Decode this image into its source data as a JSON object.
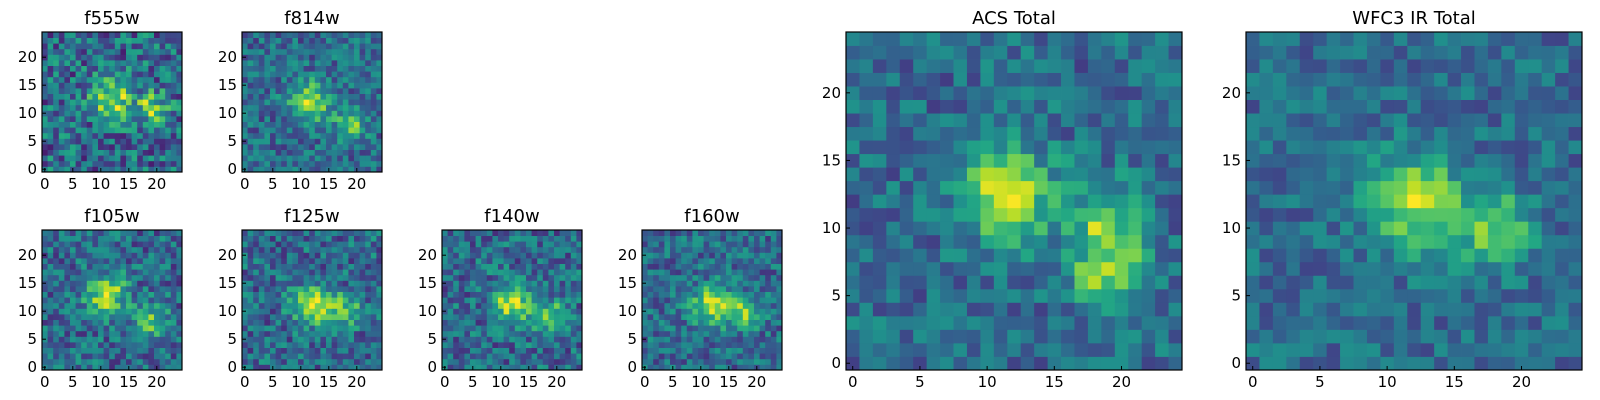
{
  "colormap": "viridis",
  "chart_data": [
    {
      "type": "heatmap",
      "title": "f555w",
      "grid": false,
      "colormap": "viridis",
      "xlim": [
        0,
        24
      ],
      "ylim": [
        0,
        24
      ],
      "xticks": [
        "0",
        "5",
        "10",
        "15",
        "20"
      ],
      "yticks": [
        "0",
        "5",
        "10",
        "15",
        "20"
      ],
      "source_peaks": [
        [
          12,
          12.5
        ],
        [
          19,
          11
        ]
      ],
      "noise_level": 0.55
    },
    {
      "type": "heatmap",
      "title": "f814w",
      "grid": false,
      "colormap": "viridis",
      "xlim": [
        0,
        24
      ],
      "ylim": [
        0,
        24
      ],
      "xticks": [
        "0",
        "5",
        "10",
        "15",
        "20"
      ],
      "yticks": [
        "0",
        "5",
        "10",
        "15",
        "20"
      ],
      "source_peaks": [
        [
          11.5,
          12
        ],
        [
          19,
          8
        ]
      ],
      "noise_level": 0.4
    },
    {
      "type": "heatmap",
      "title": "f105w",
      "grid": false,
      "colormap": "viridis",
      "xlim": [
        0,
        24
      ],
      "ylim": [
        0,
        24
      ],
      "xticks": [
        "0",
        "5",
        "10",
        "15",
        "20"
      ],
      "yticks": [
        "0",
        "5",
        "10",
        "15",
        "20"
      ],
      "source_peaks": [
        [
          11,
          13
        ],
        [
          19,
          8
        ]
      ],
      "noise_level": 0.45
    },
    {
      "type": "heatmap",
      "title": "f125w",
      "grid": false,
      "colormap": "viridis",
      "xlim": [
        0,
        24
      ],
      "ylim": [
        0,
        24
      ],
      "xticks": [
        "0",
        "5",
        "10",
        "15",
        "20"
      ],
      "yticks": [
        "0",
        "5",
        "10",
        "15",
        "20"
      ],
      "source_peaks": [
        [
          12,
          11
        ],
        [
          18,
          10
        ]
      ],
      "noise_level": 0.45
    },
    {
      "type": "heatmap",
      "title": "f140w",
      "grid": false,
      "colormap": "viridis",
      "xlim": [
        0,
        24
      ],
      "ylim": [
        0,
        24
      ],
      "xticks": [
        "0",
        "5",
        "10",
        "15",
        "20"
      ],
      "yticks": [
        "0",
        "5",
        "10",
        "15",
        "20"
      ],
      "source_peaks": [
        [
          12,
          11.5
        ],
        [
          19,
          9
        ]
      ],
      "noise_level": 0.45
    },
    {
      "type": "heatmap",
      "title": "f160w",
      "grid": false,
      "colormap": "viridis",
      "xlim": [
        0,
        24
      ],
      "ylim": [
        0,
        24
      ],
      "xticks": [
        "0",
        "5",
        "10",
        "15",
        "20"
      ],
      "yticks": [
        "0",
        "5",
        "10",
        "15",
        "20"
      ],
      "source_peaks": [
        [
          12,
          11
        ],
        [
          18,
          10
        ]
      ],
      "noise_level": 0.4
    },
    {
      "type": "heatmap",
      "title": "ACS Total",
      "grid": false,
      "colormap": "viridis",
      "xlim": [
        0,
        24
      ],
      "ylim": [
        0,
        24
      ],
      "xticks": [
        "0",
        "5",
        "10",
        "15",
        "20"
      ],
      "yticks": [
        "0",
        "5",
        "10",
        "15",
        "20"
      ],
      "source_peaks": [
        [
          11.5,
          12.5
        ],
        [
          19,
          10.5
        ],
        [
          19,
          6.5
        ]
      ],
      "noise_level": 0.35
    },
    {
      "type": "heatmap",
      "title": "WFC3 IR Total",
      "grid": false,
      "colormap": "viridis",
      "xlim": [
        0,
        24
      ],
      "ylim": [
        0,
        24
      ],
      "xticks": [
        "0",
        "5",
        "10",
        "15",
        "20"
      ],
      "yticks": [
        "0",
        "5",
        "10",
        "15",
        "20"
      ],
      "source_peaks": [
        [
          12,
          12
        ],
        [
          18,
          10
        ]
      ],
      "noise_level": 0.3
    }
  ]
}
